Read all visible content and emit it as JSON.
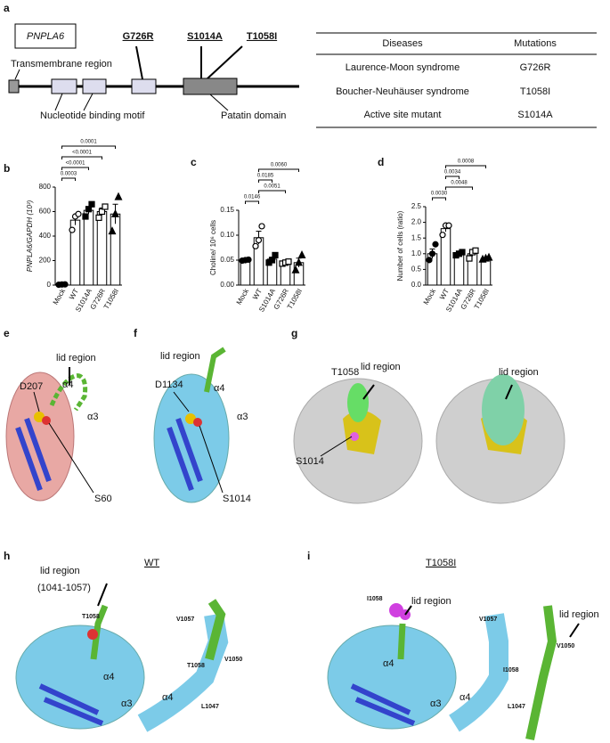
{
  "panel_a": {
    "label": "a",
    "gene": "PNPLA6",
    "mutations": [
      "G726R",
      "S1014A",
      "T1058I"
    ],
    "regions": [
      "Transmembrane region",
      "Nucleotide binding motif",
      "Patatin domain"
    ]
  },
  "table": {
    "header": [
      "Diseases",
      "Mutations"
    ],
    "rows": [
      [
        "Laurence-Moon syndrome",
        "G726R"
      ],
      [
        "Boucher-Neuhäuser  syndrome",
        "T1058I"
      ],
      [
        "Active site mutant",
        "S1014A"
      ]
    ]
  },
  "chart_data": [
    {
      "panel": "b",
      "type": "bar",
      "ylabel": "PNPLA6/GAPDH (10³)",
      "categories": [
        "Mock",
        "WT",
        "S1014A",
        "G726R",
        "T1058I"
      ],
      "values": [
        5,
        530,
        610,
        600,
        580
      ],
      "errors": [
        2,
        40,
        30,
        30,
        80
      ],
      "points": [
        [
          3,
          5,
          6
        ],
        [
          450,
          560,
          580
        ],
        [
          560,
          620,
          660
        ],
        [
          550,
          600,
          640
        ],
        [
          440,
          580,
          720
        ]
      ],
      "markers": [
        "circle-filled",
        "circle-open",
        "square-filled",
        "square-open",
        "triangle-filled"
      ],
      "color": "#ffffff",
      "edge": "#000000",
      "ylim": [
        0,
        800
      ],
      "yticks": [
        0,
        200,
        400,
        600,
        800
      ],
      "brackets": [
        {
          "pair": [
            "Mock",
            "WT"
          ],
          "text": "0.0003"
        },
        {
          "pair": [
            "Mock",
            "S1014A"
          ],
          "text": "<0.0001"
        },
        {
          "pair": [
            "Mock",
            "G726R"
          ],
          "text": "<0.0001"
        },
        {
          "pair": [
            "Mock",
            "T1058I"
          ],
          "text": "0.0001"
        }
      ]
    },
    {
      "panel": "c",
      "type": "bar",
      "ylabel": "Choline/ 10⁶ cells",
      "categories": [
        "Mock",
        "WT",
        "S1014A",
        "G726R",
        "T1058I"
      ],
      "values": [
        0.05,
        0.095,
        0.052,
        0.045,
        0.045
      ],
      "errors": [
        0.001,
        0.013,
        0.004,
        0.002,
        0.009
      ],
      "points": [
        [
          0.049,
          0.05,
          0.051
        ],
        [
          0.078,
          0.09,
          0.118
        ],
        [
          0.045,
          0.05,
          0.06
        ],
        [
          0.043,
          0.045,
          0.047
        ],
        [
          0.03,
          0.045,
          0.06
        ]
      ],
      "markers": [
        "circle-filled",
        "circle-open",
        "square-filled",
        "square-open",
        "triangle-filled"
      ],
      "color": "#ffffff",
      "edge": "#000000",
      "ylim": [
        0,
        0.15
      ],
      "yticks": [
        {
          "value": 0,
          "label": "0.00"
        },
        0.05,
        {
          "value": 0.1,
          "label": "0.10"
        },
        0.15
      ],
      "brackets": [
        {
          "pair": [
            "Mock",
            "WT"
          ],
          "text": "0.0146"
        },
        {
          "pair": [
            "WT",
            "G726R"
          ],
          "text": "0.0051"
        },
        {
          "pair": [
            "WT",
            "S1014A"
          ],
          "text": "0.0185"
        },
        {
          "pair": [
            "WT",
            "T1058I"
          ],
          "text": "0.0060"
        }
      ]
    },
    {
      "panel": "d",
      "type": "bar",
      "ylabel": "Number of cells (ratio)",
      "categories": [
        "Mock",
        "WT",
        "S1014A",
        "G726R",
        "T1058I"
      ],
      "values": [
        1.0,
        1.8,
        1.0,
        1.0,
        0.85
      ],
      "errors": [
        0.15,
        0.1,
        0.03,
        0.08,
        0.02
      ],
      "points": [
        [
          0.8,
          1.0,
          1.3
        ],
        [
          1.6,
          1.9,
          1.9
        ],
        [
          0.95,
          1.0,
          1.05
        ],
        [
          0.85,
          1.05,
          1.1
        ],
        [
          0.82,
          0.85,
          0.88
        ]
      ],
      "markers": [
        "circle-filled",
        "circle-open",
        "square-filled",
        "square-open",
        "triangle-filled"
      ],
      "color": "#ffffff",
      "edge": "#000000",
      "ylim": [
        0,
        2.5
      ],
      "yticks": [
        {
          "value": 0,
          "label": "0.0"
        },
        0.5,
        {
          "value": 1,
          "label": "1.0"
        },
        1.5,
        {
          "value": 2,
          "label": "2.0"
        },
        2.5
      ],
      "brackets": [
        {
          "pair": [
            "Mock",
            "WT"
          ],
          "text": "0.0030"
        },
        {
          "pair": [
            "WT",
            "G726R"
          ],
          "text": "0.0048"
        },
        {
          "pair": [
            "WT",
            "S1014A"
          ],
          "text": "0.0034"
        },
        {
          "pair": [
            "WT",
            "T1058I"
          ],
          "text": "0.0008"
        }
      ]
    }
  ],
  "panels": [
    {
      "label": "e",
      "texts": [
        "lid region",
        "D207",
        "α4",
        "α3",
        "S60"
      ]
    },
    {
      "label": "f",
      "texts": [
        "lid region",
        "D1134",
        "α4",
        "α3",
        "S1014"
      ]
    },
    {
      "label": "g",
      "texts": [
        "T1058",
        "lid region",
        "S1014",
        "lid region"
      ]
    },
    {
      "label": "h",
      "texts": [
        "WT",
        "lid region",
        "(1041-1057)",
        "T1058",
        "α4",
        "α3",
        "V1057",
        "V1050",
        "T1058",
        "L1047",
        "α4"
      ]
    },
    {
      "label": "i",
      "texts": [
        "T1058I",
        "I1058",
        "lid region",
        "α4",
        "α3",
        "V1057",
        "V1050",
        "I1058",
        "L1047",
        "α4",
        "lid region"
      ]
    }
  ]
}
